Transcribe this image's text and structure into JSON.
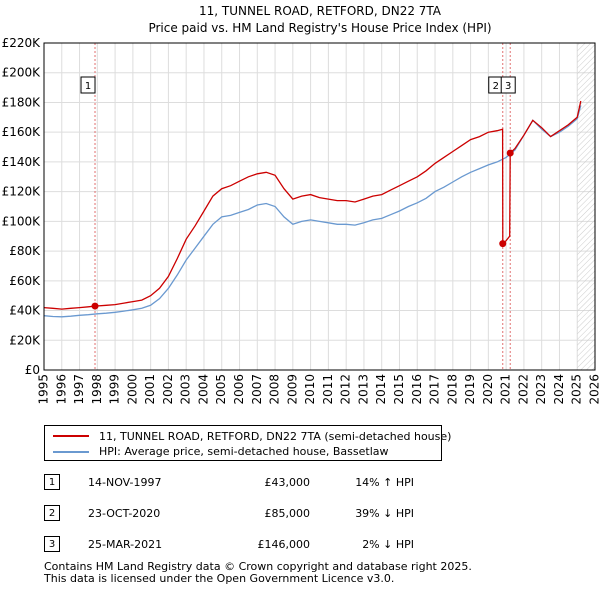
{
  "title": {
    "line1": "11, TUNNEL ROAD, RETFORD, DN22 7TA",
    "line2": "Price paid vs. HM Land Registry's House Price Index (HPI)"
  },
  "colors": {
    "property": "#cc0000",
    "hpi": "#6a99d0",
    "grid": "#dddddd",
    "marker_line": "#e07070",
    "hatch": "#cccccc"
  },
  "legend": {
    "property_label": "11, TUNNEL ROAD, RETFORD, DN22 7TA (semi-detached house)",
    "hpi_label": "HPI: Average price, semi-detached house, Bassetlaw"
  },
  "transactions": [
    {
      "num": "1",
      "date": "14-NOV-1997",
      "price": "£43,000",
      "hpi": "14% ↑ HPI"
    },
    {
      "num": "2",
      "date": "23-OCT-2020",
      "price": "£85,000",
      "hpi": "39% ↓ HPI"
    },
    {
      "num": "3",
      "date": "25-MAR-2021",
      "price": "£146,000",
      "hpi": "2% ↓ HPI"
    }
  ],
  "footer": {
    "line1": "Contains HM Land Registry data © Crown copyright and database right 2025.",
    "line2": "This data is licensed under the Open Government Licence v3.0."
  },
  "chart_data": {
    "type": "line",
    "title": "11, TUNNEL ROAD, RETFORD, DN22 7TA — Price paid vs. HM Land Registry's House Price Index (HPI)",
    "xlim": [
      1995,
      2026
    ],
    "ylim": [
      0,
      220000
    ],
    "x_ticks": [
      "1995",
      "1996",
      "1997",
      "1998",
      "1999",
      "2000",
      "2001",
      "2002",
      "2003",
      "2004",
      "2005",
      "2006",
      "2007",
      "2008",
      "2009",
      "2010",
      "2011",
      "2012",
      "2013",
      "2014",
      "2015",
      "2016",
      "2017",
      "2018",
      "2019",
      "2020",
      "2021",
      "2022",
      "2023",
      "2024",
      "2025",
      "2026"
    ],
    "y_ticks": [
      {
        "value": 0,
        "label": "£0"
      },
      {
        "value": 20000,
        "label": "£20K"
      },
      {
        "value": 40000,
        "label": "£40K"
      },
      {
        "value": 60000,
        "label": "£60K"
      },
      {
        "value": 80000,
        "label": "£80K"
      },
      {
        "value": 100000,
        "label": "£100K"
      },
      {
        "value": 120000,
        "label": "£120K"
      },
      {
        "value": 140000,
        "label": "£140K"
      },
      {
        "value": 160000,
        "label": "£160K"
      },
      {
        "value": 180000,
        "label": "£180K"
      },
      {
        "value": 200000,
        "label": "£200K"
      },
      {
        "value": 220000,
        "label": "£220K"
      }
    ],
    "grid": true,
    "hatched_from": 2025.0,
    "markers": [
      {
        "num": "1",
        "x": 1997.87,
        "price": 43000
      },
      {
        "num": "2",
        "x": 2020.81,
        "price": 85000
      },
      {
        "num": "3",
        "x": 2021.23,
        "price": 146000
      }
    ],
    "series": [
      {
        "name": "11, TUNNEL ROAD, RETFORD, DN22 7TA (semi-detached house)",
        "x": [
          1995.0,
          1995.5,
          1996.0,
          1996.5,
          1997.0,
          1997.5,
          1997.87,
          1998.5,
          1999.0,
          1999.5,
          2000.0,
          2000.5,
          2001.0,
          2001.5,
          2002.0,
          2002.5,
          2003.0,
          2003.5,
          2004.0,
          2004.5,
          2005.0,
          2005.5,
          2006.0,
          2006.5,
          2007.0,
          2007.5,
          2008.0,
          2008.5,
          2009.0,
          2009.5,
          2010.0,
          2010.5,
          2011.0,
          2011.5,
          2012.0,
          2012.5,
          2013.0,
          2013.5,
          2014.0,
          2014.5,
          2015.0,
          2015.5,
          2016.0,
          2016.5,
          2017.0,
          2017.5,
          2018.0,
          2018.5,
          2019.0,
          2019.5,
          2020.0,
          2020.5,
          2020.8,
          2020.81,
          2021.0,
          2021.2,
          2021.23,
          2021.5,
          2022.0,
          2022.5,
          2023.0,
          2023.5,
          2024.0,
          2024.5,
          2025.0,
          2025.2
        ],
        "values": [
          42000,
          41500,
          41000,
          41500,
          42000,
          42500,
          43000,
          43500,
          44000,
          45000,
          46000,
          47000,
          50000,
          55000,
          63000,
          75000,
          88000,
          97000,
          107000,
          117000,
          122000,
          124000,
          127000,
          130000,
          132000,
          133000,
          131000,
          122000,
          115000,
          117000,
          118000,
          116000,
          115000,
          114000,
          114000,
          113000,
          115000,
          117000,
          118000,
          121000,
          124000,
          127000,
          130000,
          134000,
          139000,
          143000,
          147000,
          151000,
          155000,
          157000,
          160000,
          161000,
          162000,
          85000,
          87000,
          90000,
          146000,
          149000,
          158000,
          168000,
          163000,
          157000,
          161000,
          165000,
          170000,
          181000
        ]
      },
      {
        "name": "HPI: Average price, semi-detached house, Bassetlaw",
        "x": [
          1995.0,
          1995.5,
          1996.0,
          1996.5,
          1997.0,
          1997.5,
          1998.0,
          1998.5,
          1999.0,
          1999.5,
          2000.0,
          2000.5,
          2001.0,
          2001.5,
          2002.0,
          2002.5,
          2003.0,
          2003.5,
          2004.0,
          2004.5,
          2005.0,
          2005.5,
          2006.0,
          2006.5,
          2007.0,
          2007.5,
          2008.0,
          2008.5,
          2009.0,
          2009.5,
          2010.0,
          2010.5,
          2011.0,
          2011.5,
          2012.0,
          2012.5,
          2013.0,
          2013.5,
          2014.0,
          2014.5,
          2015.0,
          2015.5,
          2016.0,
          2016.5,
          2017.0,
          2017.5,
          2018.0,
          2018.5,
          2019.0,
          2019.5,
          2020.0,
          2020.5,
          2021.0,
          2021.5,
          2022.0,
          2022.5,
          2023.0,
          2023.5,
          2024.0,
          2024.5,
          2025.0,
          2025.2
        ],
        "values": [
          36500,
          36000,
          35800,
          36200,
          36800,
          37200,
          37800,
          38200,
          38800,
          39600,
          40500,
          41500,
          43500,
          48000,
          55000,
          64000,
          74000,
          82000,
          90000,
          98000,
          103000,
          104000,
          106000,
          108000,
          111000,
          112000,
          110000,
          103000,
          98000,
          100000,
          101000,
          100000,
          99000,
          98000,
          98000,
          97500,
          99000,
          101000,
          102000,
          104500,
          107000,
          110000,
          112500,
          115500,
          120000,
          123000,
          126500,
          130000,
          133000,
          135500,
          138000,
          140000,
          143000,
          148000,
          158000,
          168000,
          162000,
          157000,
          160000,
          164000,
          169000,
          178000
        ]
      }
    ]
  }
}
